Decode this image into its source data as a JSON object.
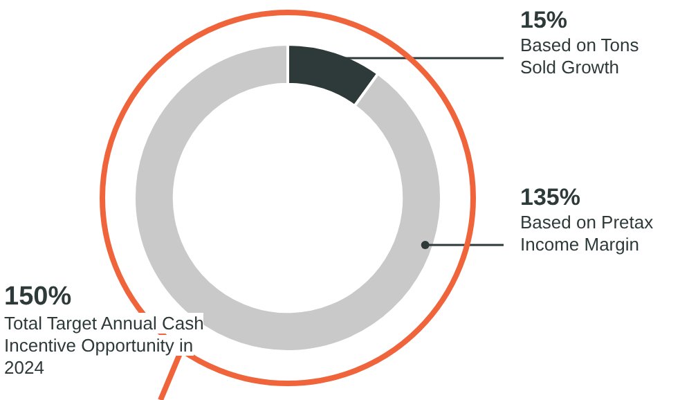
{
  "chart_data": {
    "type": "donut",
    "categories": [
      "Based on Tons Sold Growth",
      "Based on Pretax Income Margin"
    ],
    "values": [
      15,
      135
    ],
    "colors": [
      "#2e3a39",
      "#c9c9c9"
    ],
    "value_labels": [
      "15%",
      "135%"
    ],
    "legend": false,
    "annotations": [
      "150%",
      "Total Target Annual Cash Incentive Opportunity in 2024"
    ]
  }
}
